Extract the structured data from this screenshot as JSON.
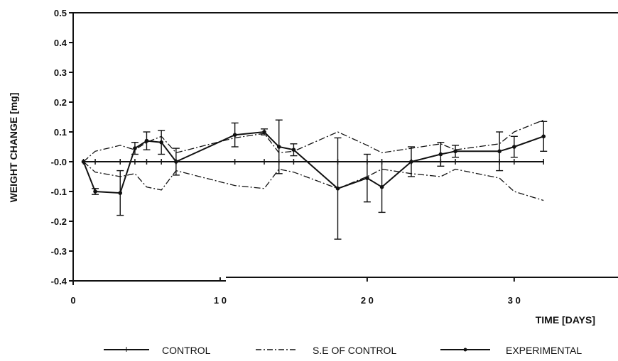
{
  "chart_data": {
    "type": "line",
    "title": "",
    "xlabel": "TIME [DAYS]",
    "ylabel": "WEIGHT CHANGE [mg]",
    "xlim": [
      0,
      36
    ],
    "ylim": [
      -0.4,
      0.5
    ],
    "x_ticks": [
      0,
      10,
      20,
      30
    ],
    "x_tick_labels": [
      "0",
      "1 0",
      "2 0",
      "3 0"
    ],
    "y_ticks": [
      0.5,
      0.4,
      0.3,
      0.2,
      0.1,
      0,
      -0.1,
      -0.2,
      -0.3,
      -0.4
    ],
    "y_tick_labels": [
      "0.5",
      "0.4",
      "0.3",
      "0.2",
      "0.1",
      "-0.0",
      "-0.1",
      "-0.2",
      "-0.3",
      "-0.4"
    ],
    "grid": false,
    "legend_position": "bottom",
    "series": [
      {
        "name": "CONTROL",
        "style": "solid-plus",
        "x": [
          0.7,
          1.5,
          3.2,
          4.2,
          5.0,
          6.0,
          7.0,
          11.0,
          13.0,
          14.0,
          15.0,
          18.0,
          20.0,
          21.0,
          23.0,
          25.0,
          26.0,
          29.0,
          30.0,
          32.0
        ],
        "y": [
          0,
          0,
          0,
          0,
          0,
          0,
          0,
          0,
          0,
          0,
          0,
          0,
          0,
          0,
          0,
          0,
          0,
          0,
          0,
          0
        ]
      },
      {
        "name": "S.E. OF CONTROL",
        "style": "dash-dot",
        "x": [
          0.7,
          1.5,
          3.2,
          4.2,
          5.0,
          6.0,
          7.0,
          11.0,
          13.0,
          14.0,
          15.0,
          18.0,
          20.0,
          21.0,
          23.0,
          25.0,
          26.0,
          29.0,
          30.0,
          32.0
        ],
        "y": [
          0,
          0.035,
          0.055,
          0.04,
          0.065,
          0.085,
          0.03,
          0.08,
          0.095,
          0.03,
          0.035,
          0.1,
          0.055,
          0.03,
          0.045,
          0.06,
          0.04,
          0.06,
          0.1,
          0.14
        ]
      },
      {
        "name": "S.E. OF CONTROL",
        "style": "dash-dot",
        "x": [
          0.7,
          1.5,
          3.2,
          4.2,
          5.0,
          6.0,
          7.0,
          11.0,
          13.0,
          14.0,
          15.0,
          18.0,
          20.0,
          21.0,
          23.0,
          25.0,
          26.0,
          29.0,
          30.0,
          32.0
        ],
        "y": [
          0,
          -0.035,
          -0.05,
          -0.04,
          -0.085,
          -0.095,
          -0.03,
          -0.08,
          -0.09,
          -0.025,
          -0.035,
          -0.09,
          -0.05,
          -0.025,
          -0.04,
          -0.05,
          -0.025,
          -0.055,
          -0.1,
          -0.13
        ]
      },
      {
        "name": "EXPERIMENTAL",
        "style": "solid-bullet",
        "x": [
          0.7,
          1.5,
          3.2,
          4.2,
          5.0,
          6.0,
          7.0,
          11.0,
          13.0,
          14.0,
          15.0,
          18.0,
          20.0,
          21.0,
          23.0,
          25.0,
          26.0,
          29.0,
          30.0,
          32.0
        ],
        "y": [
          0,
          -0.1,
          -0.105,
          0.045,
          0.07,
          0.065,
          0.0,
          0.09,
          0.1,
          0.05,
          0.04,
          -0.09,
          -0.055,
          -0.085,
          0.0,
          0.025,
          0.035,
          0.035,
          0.05,
          0.085
        ],
        "error": [
          0,
          0.01,
          0.075,
          0.02,
          0.03,
          0.04,
          0.045,
          0.04,
          0.01,
          0.09,
          0.02,
          0.17,
          0.08,
          0.085,
          0.05,
          0.04,
          0.02,
          0.065,
          0.035,
          0.05
        ]
      }
    ]
  },
  "legend": {
    "items": [
      "CONTROL",
      "S.E. OF CONTROL",
      "EXPERIMENTAL"
    ],
    "labels": [
      "CONTROL",
      "S.E OF CONTROL",
      "EXPERIMENTAL"
    ]
  }
}
